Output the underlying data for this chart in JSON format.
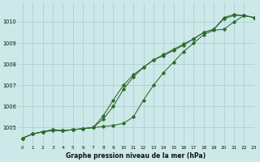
{
  "title": "Graphe pression niveau de la mer (hPa)",
  "bg_color": "#cce8e8",
  "grid_color": "#aacccc",
  "line_color": "#2d6a2d",
  "xlim": [
    -0.5,
    23
  ],
  "ylim": [
    1004.2,
    1010.9
  ],
  "xticks": [
    0,
    1,
    2,
    3,
    4,
    5,
    6,
    7,
    8,
    9,
    10,
    11,
    12,
    13,
    14,
    15,
    16,
    17,
    18,
    19,
    20,
    21,
    22,
    23
  ],
  "yticks": [
    1005,
    1006,
    1007,
    1008,
    1009,
    1010
  ],
  "series1": [
    1004.5,
    1004.7,
    1004.8,
    1004.85,
    1004.85,
    1004.9,
    1004.95,
    1005.0,
    1005.05,
    1005.1,
    1005.2,
    1005.5,
    1006.3,
    1007.0,
    1007.6,
    1008.1,
    1008.6,
    1009.0,
    1009.4,
    1009.6,
    1009.65,
    1010.0,
    1010.3,
    1010.2
  ],
  "series2": [
    1004.5,
    1004.7,
    1004.8,
    1004.9,
    1004.85,
    1004.9,
    1004.95,
    1005.0,
    1005.4,
    1006.0,
    1006.8,
    1007.4,
    1007.85,
    1008.2,
    1008.45,
    1008.7,
    1008.95,
    1009.2,
    1009.5,
    1009.65,
    1010.15,
    1010.3,
    1010.3,
    1010.2
  ],
  "series3": [
    1004.5,
    1004.7,
    1004.8,
    1004.9,
    1004.85,
    1004.9,
    1004.95,
    1005.0,
    1005.55,
    1006.3,
    1007.0,
    1007.5,
    1007.85,
    1008.2,
    1008.4,
    1008.65,
    1008.9,
    1009.2,
    1009.5,
    1009.65,
    1010.2,
    1010.35,
    1010.3,
    1010.2
  ]
}
